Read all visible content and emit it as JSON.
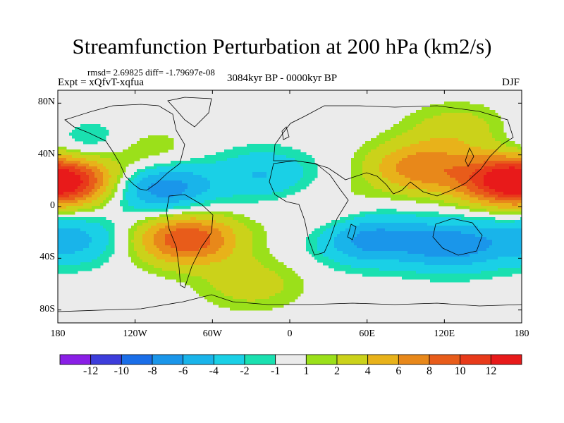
{
  "title": "Streamfunction Perturbation at 200 hPa (km2/s)",
  "stats": "rmsd= 2.69825 diff= -1.79697e-08",
  "expt": "Expt = xQfvT-xqfua",
  "period": "3084kyr BP - 0000kyr BP",
  "season": "DJF",
  "axes": {
    "y_labels": [
      "80N",
      "40N",
      "0",
      "40S",
      "80S"
    ],
    "y_values": [
      80,
      40,
      0,
      -40,
      -80
    ],
    "x_labels": [
      "180",
      "120W",
      "60W",
      "0",
      "60E",
      "120E",
      "180"
    ],
    "x_values": [
      -180,
      -120,
      -60,
      0,
      60,
      120,
      180
    ]
  },
  "colorbar": {
    "labels": [
      "-12",
      "-10",
      "-8",
      "-6",
      "-4",
      "-2",
      "-1",
      "1",
      "2",
      "4",
      "6",
      "8",
      "10",
      "12"
    ],
    "colors": [
      "#8a1fe6",
      "#3d3ddb",
      "#1a6ee8",
      "#1a96ea",
      "#19b4ea",
      "#1ad0e6",
      "#1ae0b0",
      "#ebebeb",
      "#9be01a",
      "#cbd21a",
      "#e8b21a",
      "#e8881a",
      "#e85c1a",
      "#e83a1a",
      "#e81a1a"
    ]
  },
  "chart_data": {
    "type": "heatmap",
    "title": "Streamfunction Perturbation at 200 hPa (km2/s)",
    "levels": [
      -12,
      -10,
      -8,
      -6,
      -4,
      -2,
      -1,
      1,
      2,
      4,
      6,
      8,
      10,
      12
    ],
    "xlim": [
      -180,
      180
    ],
    "ylim": [
      -90,
      90
    ],
    "blobs": [
      {
        "lon": -170,
        "lat": 20,
        "value": 9
      },
      {
        "lon": 165,
        "lat": 20,
        "value": 9
      },
      {
        "lon": -80,
        "lat": -25,
        "value": 10
      },
      {
        "lon": 100,
        "lat": 30,
        "value": 7
      },
      {
        "lon": -100,
        "lat": 15,
        "value": -8
      },
      {
        "lon": 60,
        "lat": -25,
        "value": -7
      },
      {
        "lon": 125,
        "lat": -30,
        "value": -7
      },
      {
        "lon": -20,
        "lat": 25,
        "value": -4
      },
      {
        "lon": -170,
        "lat": -25,
        "value": -5
      },
      {
        "lon": 130,
        "lat": 60,
        "value": 3
      },
      {
        "lon": -30,
        "lat": -60,
        "value": 3
      },
      {
        "lon": -150,
        "lat": 45,
        "value": -4
      },
      {
        "lon": 30,
        "lat": -5,
        "value": 2
      },
      {
        "lon": -120,
        "lat": 40,
        "value": 4
      }
    ]
  }
}
